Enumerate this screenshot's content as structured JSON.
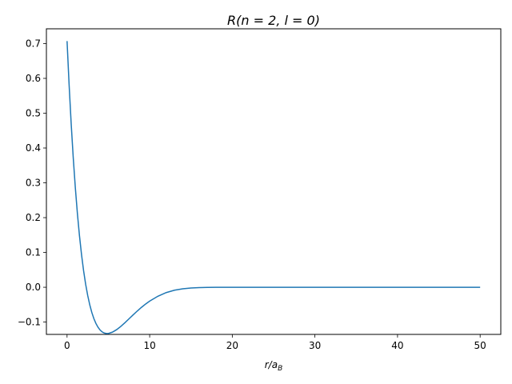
{
  "chart_data": {
    "type": "line",
    "title": {
      "prefix": "R",
      "text": "(n = 2, l = 0)"
    },
    "xlabel": {
      "main": "r/a",
      "sub": "B"
    },
    "ylabel": "",
    "xlim": [
      -2.5,
      52.5
    ],
    "ylim": [
      -0.1354,
      0.7424
    ],
    "xticks": [
      0,
      10,
      20,
      30,
      40,
      50
    ],
    "xtick_labels": [
      "0",
      "10",
      "20",
      "30",
      "40",
      "50"
    ],
    "yticks": [
      -0.1,
      0.0,
      0.1,
      0.2,
      0.3,
      0.4,
      0.5,
      0.6,
      0.7
    ],
    "ytick_labels": [
      "−0.1",
      "0.0",
      "0.1",
      "0.2",
      "0.3",
      "0.4",
      "0.5",
      "0.6",
      "0.7"
    ],
    "grid": false,
    "legend": "none",
    "series": [
      {
        "color": "#1f77b4",
        "x": [
          0,
          0.25,
          0.5,
          0.75,
          1,
          1.25,
          1.5,
          1.75,
          2,
          2.25,
          2.5,
          2.75,
          3,
          3.25,
          3.5,
          3.75,
          4,
          4.25,
          4.5,
          4.75,
          5,
          5.5,
          6,
          6.5,
          7,
          7.5,
          8,
          8.5,
          9,
          9.5,
          10,
          11,
          12,
          13,
          14,
          15,
          16,
          17,
          18,
          19,
          20,
          22,
          24,
          26,
          28,
          30,
          35,
          40,
          45,
          50
        ],
        "y": [
          0.7071,
          0.581,
          0.4696,
          0.3718,
          0.2865,
          0.2124,
          0.1487,
          0.0942,
          0.0479,
          0.0089,
          -0.0237,
          -0.0506,
          -0.0727,
          -0.0904,
          -0.1043,
          -0.115,
          -0.1228,
          -0.1282,
          -0.1314,
          -0.1329,
          -0.1327,
          -0.1288,
          -0.1218,
          -0.1125,
          -0.1019,
          -0.0906,
          -0.0792,
          -0.0682,
          -0.0578,
          -0.0483,
          -0.0398,
          -0.0257,
          -0.0153,
          -0.0085,
          -0.0044,
          -0.0021,
          -0.001,
          -0.0004,
          -0.00017,
          -7e-05,
          -3e-05,
          0,
          0,
          0,
          0,
          0,
          0,
          0,
          0,
          0
        ]
      }
    ]
  }
}
